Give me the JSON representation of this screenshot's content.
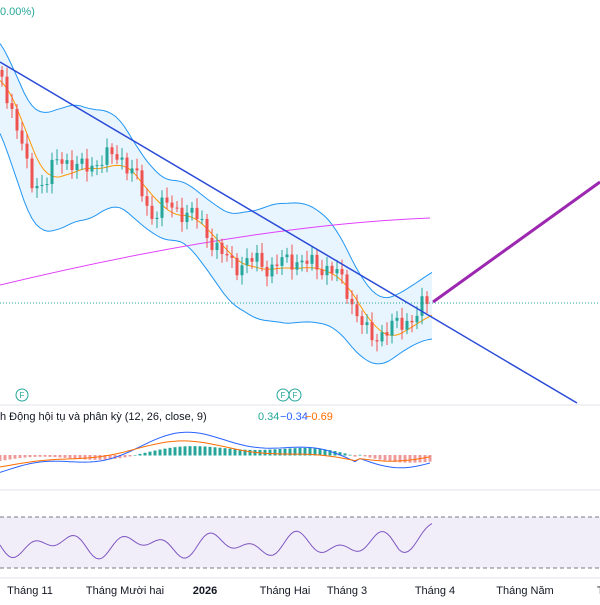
{
  "header": {
    "change": "0.00%)"
  },
  "markers": [
    "F",
    "F",
    "F"
  ],
  "macd_legend": {
    "title": "h Động hội tụ và phân kỳ (12, 26, close, 9)",
    "values": [
      "0.34",
      "−0.34",
      "−0.69"
    ]
  },
  "time_axis": [
    "Tháng 11",
    "Tháng Mười hai",
    "2026",
    "Tháng Hai",
    "Tháng 3",
    "Tháng 4",
    "Tháng Năm",
    "Th"
  ]
}
